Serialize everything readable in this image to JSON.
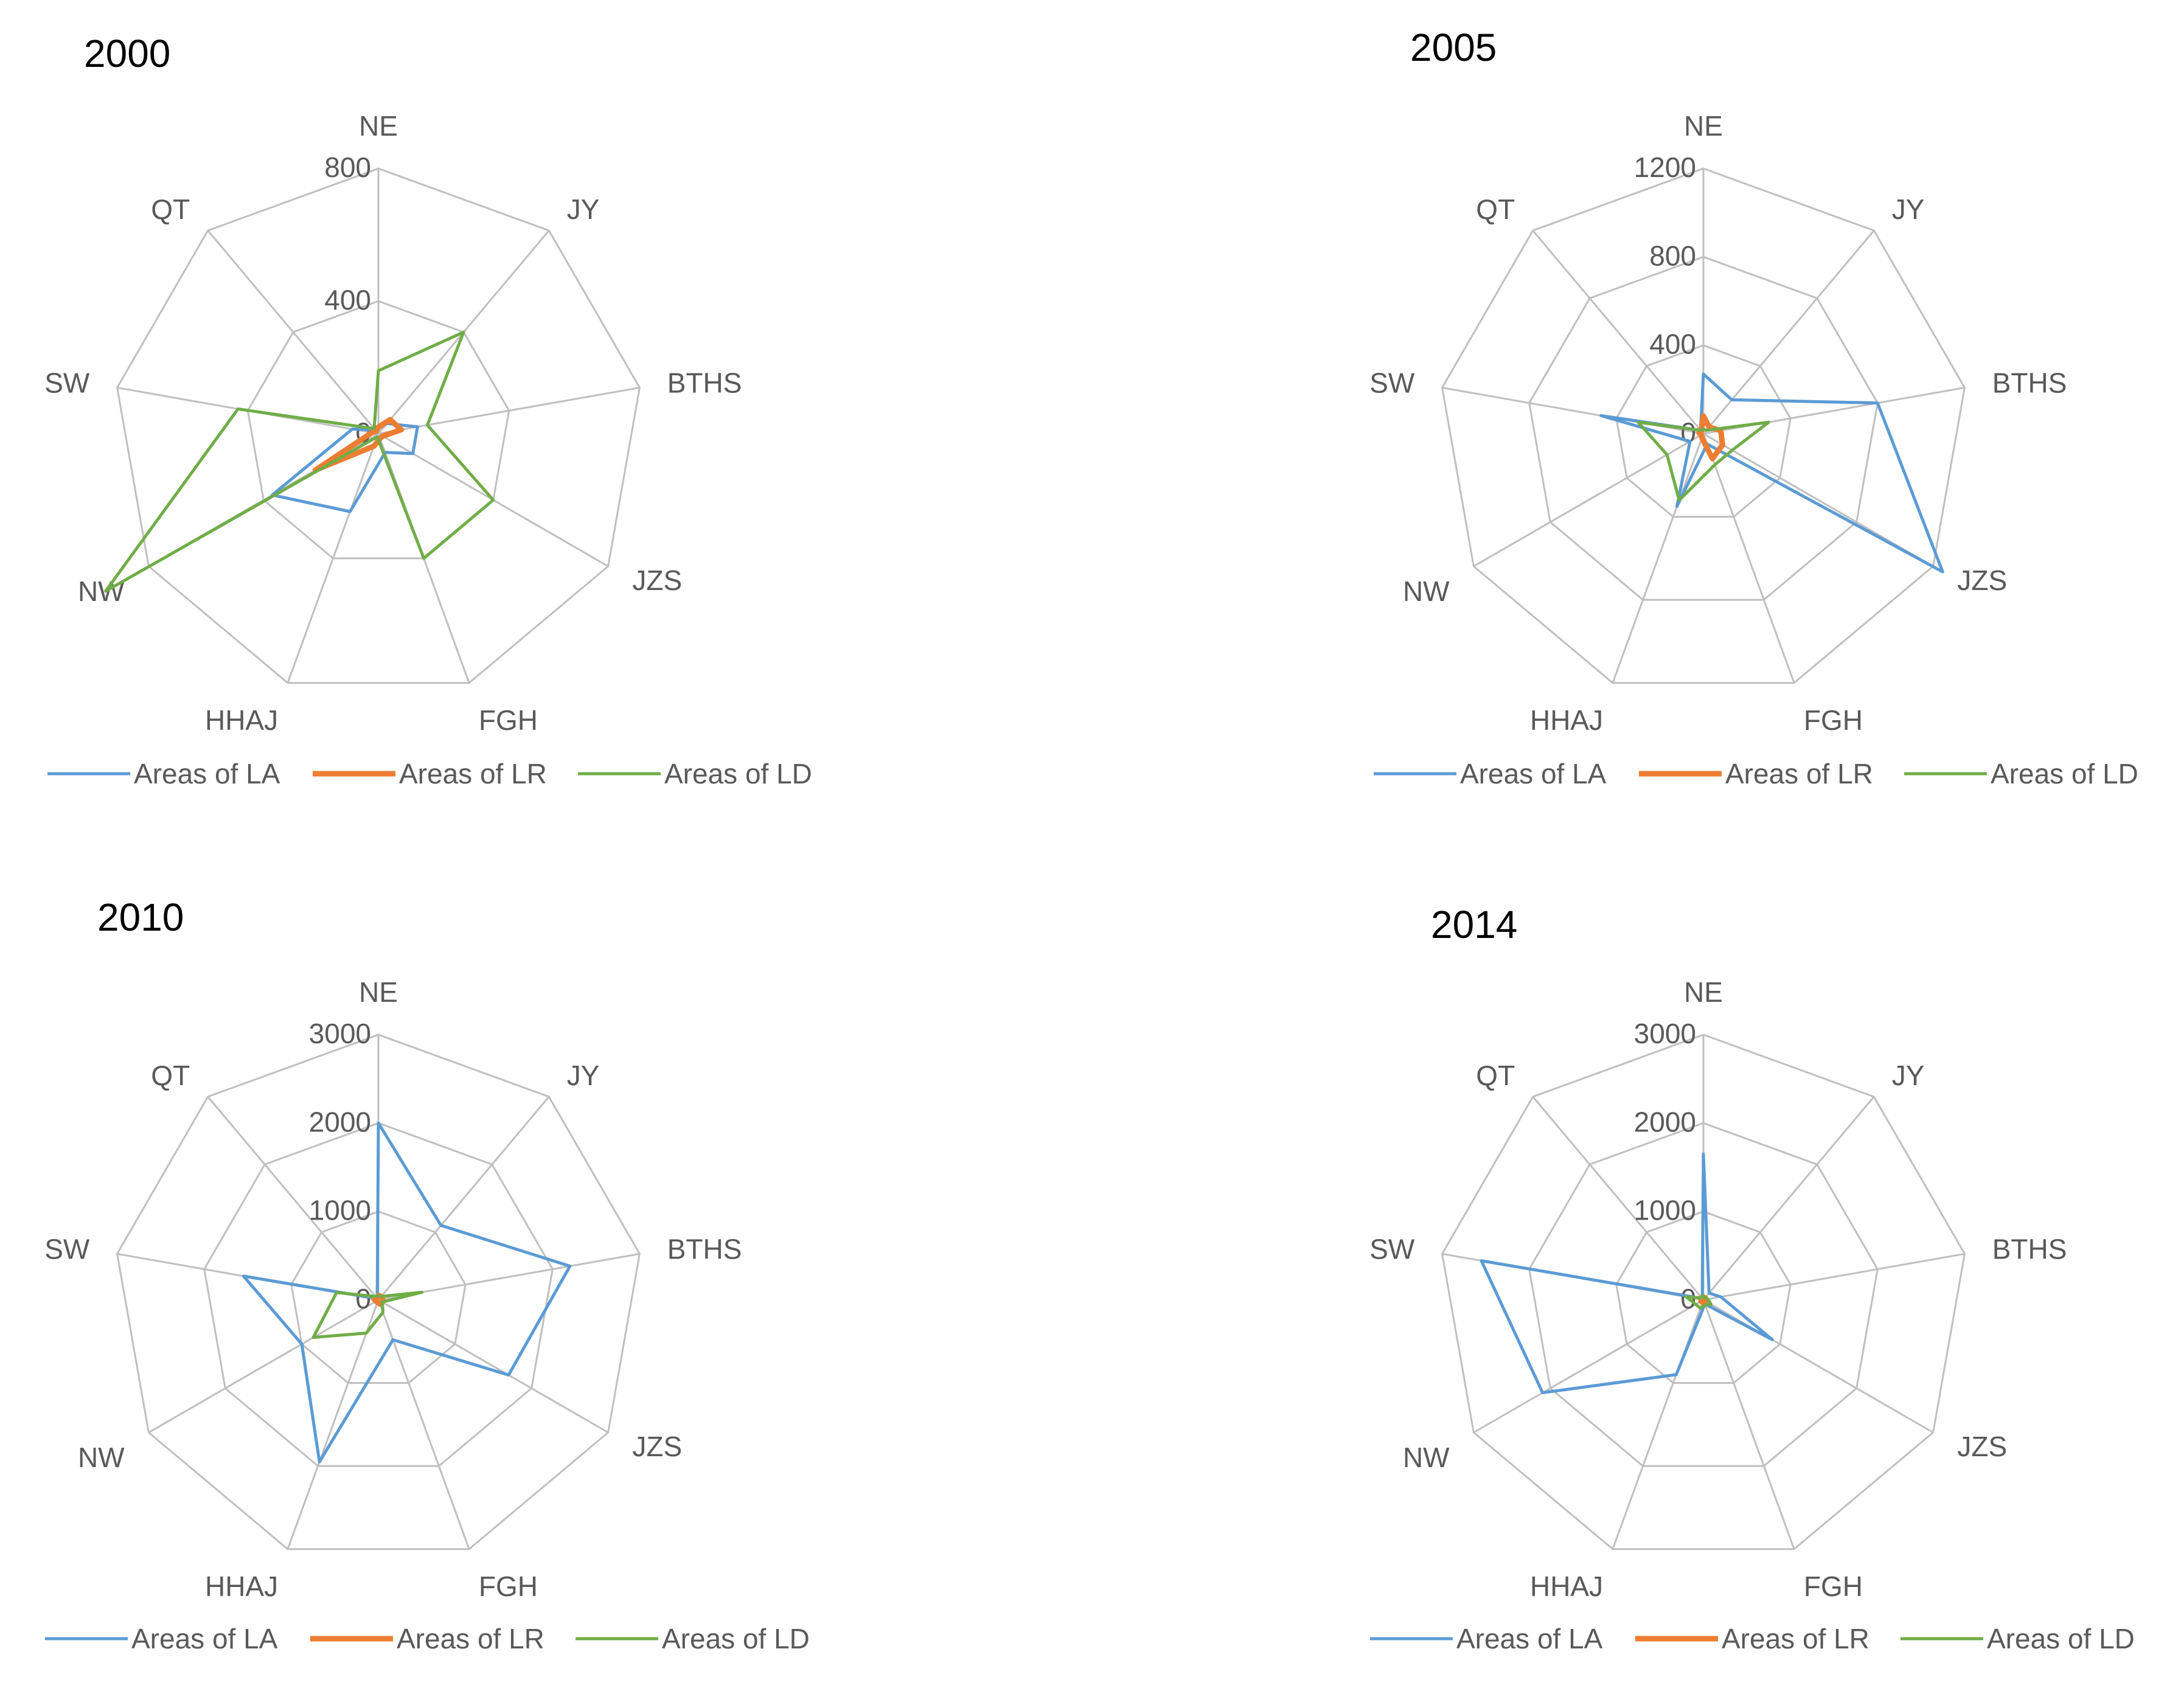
{
  "chart_data": [
    {
      "type": "radar",
      "title": "2000",
      "categories": [
        "NE",
        "JY",
        "BTHS",
        "JZS",
        "FGH",
        "HHAJ",
        "NW",
        "SW",
        "QT"
      ],
      "ticks": [
        "0",
        "400",
        "800"
      ],
      "rlim": [
        0,
        800
      ],
      "grid": true,
      "legend_position": "bottom",
      "series": [
        {
          "name": "Areas of LA",
          "color": "#5B9BD5",
          "values": [
            15,
            40,
            120,
            120,
            60,
            250,
            370,
            80,
            15
          ]
        },
        {
          "name": "Areas of LR",
          "color": "#ED7D31",
          "values": [
            20,
            55,
            70,
            15,
            15,
            40,
            220,
            20,
            10
          ]
        },
        {
          "name": "Areas of LD",
          "color": "#70AD47",
          "values": [
            190,
            400,
            150,
            400,
            400,
            10,
            950,
            430,
            20
          ]
        }
      ]
    },
    {
      "type": "radar",
      "title": "2005",
      "categories": [
        "NE",
        "JY",
        "BTHS",
        "JZS",
        "FGH",
        "HHAJ",
        "NW",
        "SW",
        "QT"
      ],
      "ticks": [
        "0",
        "400",
        "800",
        "1200"
      ],
      "rlim": [
        0,
        1200
      ],
      "grid": true,
      "legend_position": "bottom",
      "series": [
        {
          "name": "Areas of LA",
          "color": "#5B9BD5",
          "values": [
            270,
            200,
            800,
            1250,
            50,
            350,
            70,
            470,
            20
          ]
        },
        {
          "name": "Areas of LR",
          "color": "#ED7D31",
          "values": [
            80,
            40,
            80,
            100,
            120,
            20,
            10,
            20,
            15
          ]
        },
        {
          "name": "Areas of LD",
          "color": "#70AD47",
          "values": [
            20,
            20,
            300,
            150,
            150,
            320,
            190,
            300,
            20
          ]
        }
      ]
    },
    {
      "type": "radar",
      "title": "2010",
      "categories": [
        "NE",
        "JY",
        "BTHS",
        "JZS",
        "FGH",
        "HHAJ",
        "NW",
        "SW",
        "QT"
      ],
      "ticks": [
        "0",
        "1000",
        "2000",
        "3000"
      ],
      "rlim": [
        0,
        3000
      ],
      "grid": true,
      "legend_position": "bottom",
      "series": [
        {
          "name": "Areas of LA",
          "color": "#5B9BD5",
          "values": [
            2000,
            1100,
            2200,
            1700,
            480,
            1950,
            1000,
            1550,
            20
          ]
        },
        {
          "name": "Areas of LR",
          "color": "#ED7D31",
          "values": [
            50,
            50,
            50,
            50,
            50,
            30,
            30,
            50,
            30
          ]
        },
        {
          "name": "Areas of LD",
          "color": "#70AD47",
          "values": [
            50,
            50,
            500,
            50,
            150,
            400,
            850,
            480,
            50
          ]
        }
      ]
    },
    {
      "type": "radar",
      "title": "2014",
      "categories": [
        "NE",
        "JY",
        "BTHS",
        "JZS",
        "FGH",
        "HHAJ",
        "NW",
        "SW",
        "QT"
      ],
      "ticks": [
        "0",
        "1000",
        "2000",
        "3000"
      ],
      "rlim": [
        0,
        3000
      ],
      "grid": true,
      "legend_position": "bottom",
      "series": [
        {
          "name": "Areas of LA",
          "color": "#5B9BD5",
          "values": [
            1650,
            100,
            200,
            900,
            50,
            900,
            2100,
            2550,
            20
          ]
        },
        {
          "name": "Areas of LR",
          "color": "#ED7D31",
          "values": [
            30,
            30,
            30,
            30,
            30,
            30,
            30,
            30,
            30
          ]
        },
        {
          "name": "Areas of LD",
          "color": "#70AD47",
          "values": [
            50,
            30,
            50,
            100,
            60,
            100,
            100,
            200,
            30
          ]
        }
      ]
    }
  ]
}
